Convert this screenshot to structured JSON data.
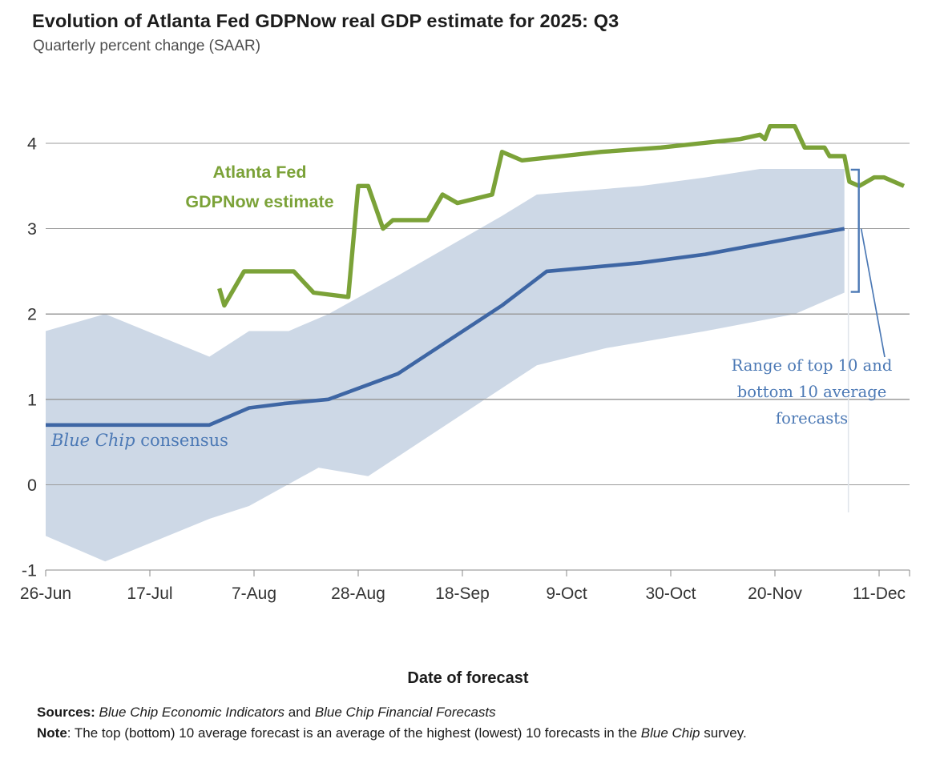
{
  "header": {
    "title": "Evolution of Atlanta Fed GDPNow real GDP estimate for 2025: Q3",
    "subtitle": "Quarterly percent change (SAAR)"
  },
  "xaxis": {
    "title": "Date of forecast"
  },
  "annotations": {
    "gdpnow_label": "Atlanta Fed\nGDPNow estimate",
    "bluechip_italic": "Blue Chip",
    "bluechip_rest": " consensus",
    "range_label": "Range of top 10 and\nbottom 10 average\nforecasts"
  },
  "footer": {
    "sources_label": "Sources: ",
    "source_1": "Blue Chip Economic Indicators",
    "sources_and": " and ",
    "source_2": "Blue Chip Financial Forecasts",
    "note_label": "Note",
    "note_body": ": The top (bottom) 10 average forecast is an average of the highest (lowest) 10 forecasts in the ",
    "note_italic": "Blue Chip",
    "note_end": " survey."
  },
  "colors": {
    "gdpnow_green": "#7ba238",
    "bluechip_blue": "#3e66a4",
    "band_fill": "#cdd8e6",
    "annotation_blue": "#4c79b5",
    "gridline": "#9b9b9b",
    "axis": "#8a8a8a",
    "tick_text": "#343434",
    "reference_line": "#dfe4ea"
  },
  "chart_data": {
    "type": "line",
    "title": "Evolution of Atlanta Fed GDPNow real GDP estimate for 2025: Q3",
    "subtitle": "Quarterly percent change (SAAR)",
    "xlabel": "Date of forecast",
    "ylabel": "Quarterly percent change (SAAR)",
    "grid": "horizontal",
    "x_axis": {
      "unit": "days since 26-Jun",
      "tick_days": [
        0,
        21,
        42,
        63,
        84,
        105,
        126,
        147,
        168
      ],
      "tick_labels": [
        "26-Jun",
        "17-Jul",
        "7-Aug",
        "28-Aug",
        "18-Sep",
        "9-Oct",
        "30-Oct",
        "20-Nov",
        "11-Dec"
      ]
    },
    "y_axis": {
      "ticks": [
        4,
        3,
        2,
        1,
        0,
        -1
      ],
      "range": [
        -1,
        4.35
      ]
    },
    "series": [
      {
        "name": "Atlanta Fed GDPNow estimate",
        "type": "line",
        "color": "#7ba238",
        "points": [
          [
            35,
            2.3
          ],
          [
            36,
            2.1
          ],
          [
            40,
            2.5
          ],
          [
            50,
            2.5
          ],
          [
            54,
            2.25
          ],
          [
            61,
            2.2
          ],
          [
            63,
            3.5
          ],
          [
            65,
            3.5
          ],
          [
            68,
            3.0
          ],
          [
            70,
            3.1
          ],
          [
            77,
            3.1
          ],
          [
            80,
            3.4
          ],
          [
            83,
            3.3
          ],
          [
            90,
            3.4
          ],
          [
            92,
            3.9
          ],
          [
            96,
            3.8
          ],
          [
            104,
            3.85
          ],
          [
            112,
            3.9
          ],
          [
            124,
            3.95
          ],
          [
            132,
            4.0
          ],
          [
            140,
            4.05
          ],
          [
            144,
            4.1
          ],
          [
            145,
            4.05
          ],
          [
            146,
            4.2
          ],
          [
            151,
            4.2
          ],
          [
            153,
            3.95
          ],
          [
            157,
            3.95
          ],
          [
            158,
            3.85
          ],
          [
            161,
            3.85
          ],
          [
            162,
            3.55
          ],
          [
            164,
            3.5
          ],
          [
            167,
            3.6
          ],
          [
            169,
            3.6
          ],
          [
            173,
            3.5
          ]
        ]
      },
      {
        "name": "Blue Chip consensus",
        "type": "line",
        "color": "#3e66a4",
        "points": [
          [
            0,
            0.7
          ],
          [
            33,
            0.7
          ],
          [
            41,
            0.9
          ],
          [
            48,
            0.95
          ],
          [
            57,
            1.0
          ],
          [
            71,
            1.3
          ],
          [
            92,
            2.1
          ],
          [
            101,
            2.5
          ],
          [
            120,
            2.6
          ],
          [
            133,
            2.7
          ],
          [
            147,
            2.85
          ],
          [
            161,
            3.0
          ]
        ]
      },
      {
        "name": "Top 10 average forecast (band upper edge)",
        "type": "band-upper",
        "color": "#cdd8e6",
        "points": [
          [
            0,
            1.8
          ],
          [
            12,
            2.0
          ],
          [
            33,
            1.5
          ],
          [
            41,
            1.8
          ],
          [
            49,
            1.8
          ],
          [
            57,
            2.0
          ],
          [
            71,
            2.45
          ],
          [
            92,
            3.15
          ],
          [
            99,
            3.4
          ],
          [
            120,
            3.5
          ],
          [
            133,
            3.6
          ],
          [
            144,
            3.7
          ],
          [
            161,
            3.7
          ]
        ]
      },
      {
        "name": "Bottom 10 average forecast (band lower edge)",
        "type": "band-lower",
        "color": "#cdd8e6",
        "points": [
          [
            0,
            -0.6
          ],
          [
            12,
            -0.9
          ],
          [
            33,
            -0.4
          ],
          [
            41,
            -0.25
          ],
          [
            55,
            0.2
          ],
          [
            65,
            0.1
          ],
          [
            99,
            1.4
          ],
          [
            113,
            1.6
          ],
          [
            133,
            1.8
          ],
          [
            151,
            2.0
          ],
          [
            161,
            2.25
          ]
        ]
      }
    ],
    "band_annotation": {
      "label": "Range of top 10 and bottom 10 average forecasts",
      "top_value": 3.7,
      "bottom_value": 2.25,
      "at_day": 161
    },
    "legend_position": "labels-on-chart"
  }
}
